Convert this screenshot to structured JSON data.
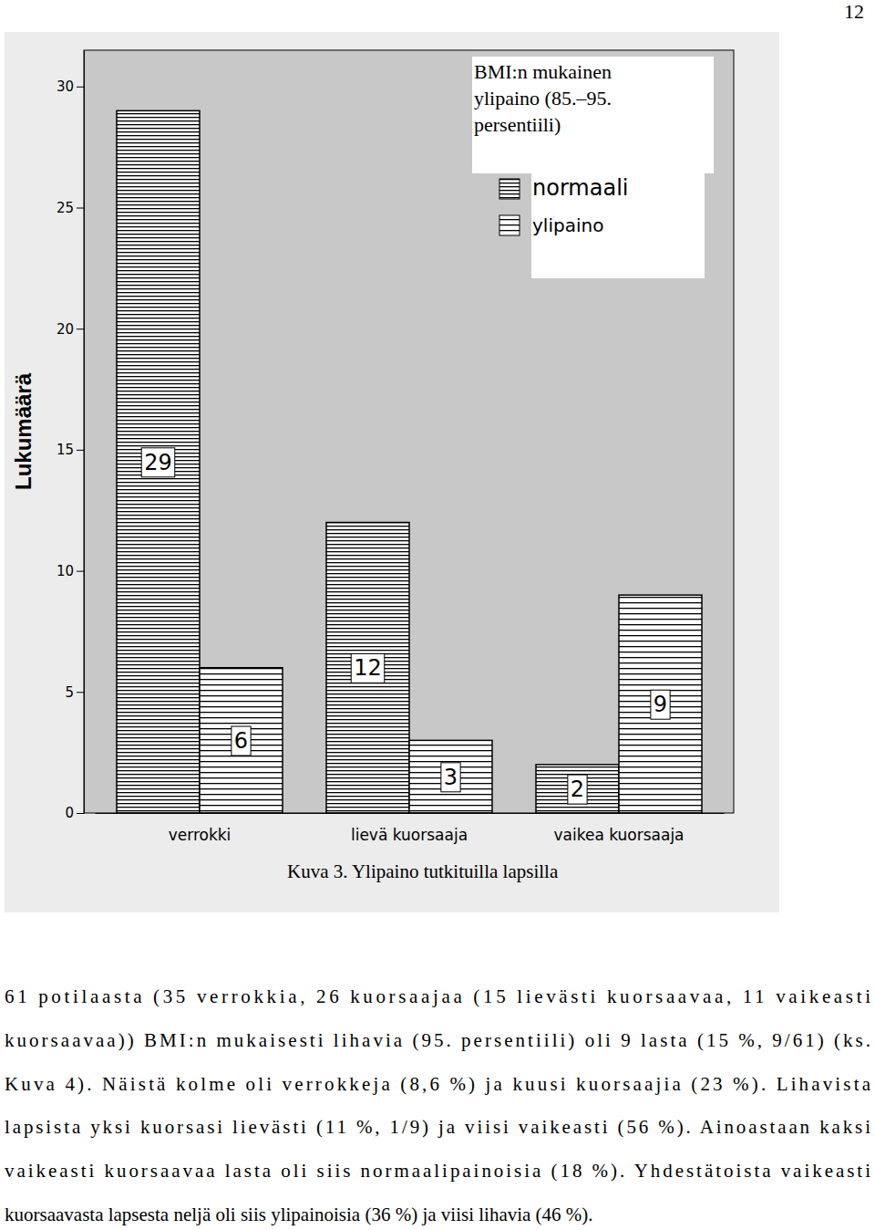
{
  "page_number": "12",
  "chart_data": {
    "type": "bar",
    "title": "Kuva 3. Ylipaino tutkituilla lapsilla",
    "y_label": "Lukumäärä",
    "legend_title": [
      "BMI:n mukainen",
      "ylipaino (85.–95.",
      "persentiili)"
    ],
    "categories": [
      "verrokki",
      "lievä kuorsaaja",
      "vaikea kuorsaaja"
    ],
    "series": [
      {
        "name": "normaali",
        "color": "#000000",
        "values": [
          29,
          12,
          2
        ]
      },
      {
        "name": "ylipaino",
        "color": "#000000",
        "values": [
          6,
          3,
          9
        ]
      }
    ],
    "ylim": [
      0,
      31.5
    ],
    "yticks": [
      0,
      5,
      10,
      15,
      20,
      25,
      30
    ],
    "grid": false,
    "legend": "top-right",
    "data_labels": true
  },
  "text": {
    "lines": [
      "61 potilaasta (35 verrokkia, 26 kuorsaajaa (15 lievästi kuorsaavaa, 11 vaikeasti",
      "kuorsaavaa)) BMI:n mukaisesti lihavia (95. persentiili) oli 9 lasta (15 %, 9/61) (ks.",
      "Kuva 4). Näistä kolme oli verrokkeja (8,6 %) ja kuusi kuorsaajia (23 %). Lihavista",
      "lapsista yksi kuorsasi lievästi (11 %, 1/9) ja viisi vaikeasti (56 %). Ainoastaan kaksi",
      "vaikeasti kuorsaavaa lasta oli siis normaalipainoisia (18 %). Yhdestätoista vaikeasti",
      "kuorsaavasta lapsesta neljä oli siis ylipainoisia (36 %) ja viisi lihavia (46 %)."
    ]
  }
}
